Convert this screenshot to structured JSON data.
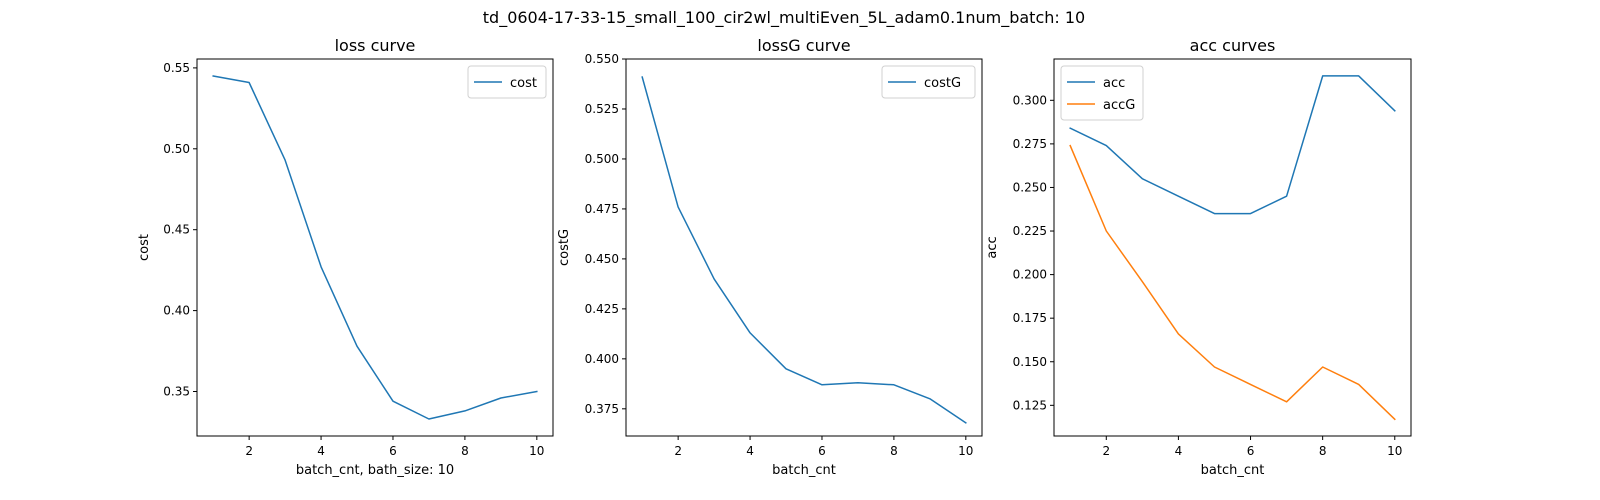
{
  "suptitle": "td_0604-17-33-15_small_100_cir2wl_multiEven_5L_adam0.1num_batch: 10",
  "colors": {
    "blue": "#1f77b4",
    "orange": "#ff7f0e"
  },
  "chart_data": [
    {
      "type": "line",
      "title": "loss curve",
      "xlabel": "batch_cnt, bath_size: 10",
      "ylabel": "cost",
      "xlim": [
        0.55,
        10.45
      ],
      "ylim": [
        0.3225,
        0.5555
      ],
      "xticks": [
        "2",
        "4",
        "6",
        "8",
        "10"
      ],
      "xtick_values": [
        2,
        4,
        6,
        8,
        10
      ],
      "yticks": [
        "0.35",
        "0.40",
        "0.45",
        "0.50",
        "0.55"
      ],
      "ytick_values": [
        0.35,
        0.4,
        0.45,
        0.5,
        0.55
      ],
      "legend_loc": "upper right",
      "series": [
        {
          "name": "cost",
          "color": "#1f77b4",
          "x": [
            1,
            2,
            3,
            4,
            5,
            6,
            7,
            8,
            9,
            10
          ],
          "values": [
            0.545,
            0.541,
            0.493,
            0.427,
            0.378,
            0.344,
            0.333,
            0.338,
            0.346,
            0.35
          ]
        }
      ]
    },
    {
      "type": "line",
      "title": "lossG curve",
      "xlabel": "batch_cnt",
      "ylabel": "costG",
      "xlim": [
        0.55,
        10.45
      ],
      "ylim": [
        0.3614,
        0.55
      ],
      "xticks": [
        "2",
        "4",
        "6",
        "8",
        "10"
      ],
      "xtick_values": [
        2,
        4,
        6,
        8,
        10
      ],
      "yticks": [
        "0.375",
        "0.400",
        "0.425",
        "0.450",
        "0.475",
        "0.500",
        "0.525",
        "0.550"
      ],
      "ytick_values": [
        0.375,
        0.4,
        0.425,
        0.45,
        0.475,
        0.5,
        0.525,
        0.55
      ],
      "legend_loc": "upper right",
      "series": [
        {
          "name": "costG",
          "color": "#1f77b4",
          "x": [
            1,
            2,
            3,
            4,
            5,
            6,
            7,
            8,
            9,
            10
          ],
          "values": [
            0.541,
            0.476,
            0.44,
            0.413,
            0.395,
            0.387,
            0.388,
            0.387,
            0.38,
            0.368
          ]
        }
      ]
    },
    {
      "type": "line",
      "title": "acc curves",
      "xlabel": "batch_cnt",
      "ylabel": "acc",
      "xlim": [
        0.55,
        10.45
      ],
      "ylim": [
        0.1074,
        0.3237
      ],
      "xticks": [
        "2",
        "4",
        "6",
        "8",
        "10"
      ],
      "xtick_values": [
        2,
        4,
        6,
        8,
        10
      ],
      "yticks": [
        "0.125",
        "0.150",
        "0.175",
        "0.200",
        "0.225",
        "0.250",
        "0.275",
        "0.300"
      ],
      "ytick_values": [
        0.125,
        0.15,
        0.175,
        0.2,
        0.225,
        0.25,
        0.275,
        0.3
      ],
      "legend_loc": "upper left",
      "series": [
        {
          "name": "acc",
          "color": "#1f77b4",
          "x": [
            1,
            2,
            3,
            4,
            5,
            6,
            7,
            8,
            9,
            10
          ],
          "values": [
            0.284,
            0.274,
            0.255,
            0.245,
            0.235,
            0.235,
            0.245,
            0.314,
            0.314,
            0.294
          ]
        },
        {
          "name": "accG",
          "color": "#ff7f0e",
          "x": [
            1,
            2,
            3,
            4,
            5,
            6,
            7,
            8,
            9,
            10
          ],
          "values": [
            0.274,
            0.225,
            0.196,
            0.166,
            0.147,
            0.137,
            0.127,
            0.147,
            0.137,
            0.117
          ]
        }
      ]
    }
  ]
}
